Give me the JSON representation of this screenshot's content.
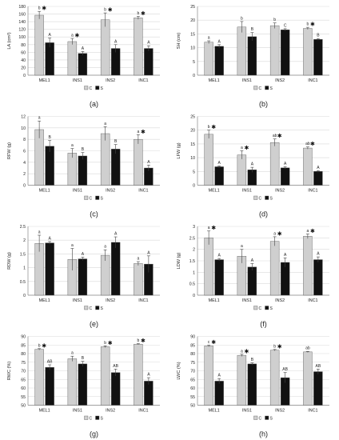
{
  "figure": {
    "legend_labels": [
      "C",
      "S"
    ],
    "colors": {
      "C": "#cfcfcf",
      "S": "#111111",
      "axis": "#888888",
      "grid": "#d9d9d9",
      "text": "#222222"
    }
  },
  "chart_data": [
    {
      "panel": "(a)",
      "type": "bar",
      "ylabel": "LA (cm²)",
      "ylim": [
        0,
        180
      ],
      "yticks": [
        0,
        20,
        40,
        60,
        80,
        100,
        120,
        140,
        160,
        180
      ],
      "categories": [
        "MEL1",
        "INS1",
        "INS2",
        "INC1"
      ],
      "series": [
        {
          "name": "C",
          "values": [
            157,
            88,
            145,
            150
          ],
          "err": [
            10,
            8,
            18,
            4
          ],
          "letters": [
            "b",
            "a",
            "b",
            "b"
          ],
          "stars": [
            true,
            true,
            true,
            true
          ]
        },
        {
          "name": "S",
          "values": [
            85,
            57,
            70,
            70
          ],
          "err": [
            12,
            5,
            10,
            7
          ],
          "letters": [
            "A",
            "A",
            "A",
            "A"
          ],
          "stars": [
            false,
            false,
            false,
            false
          ]
        }
      ]
    },
    {
      "panel": "(b)",
      "type": "bar",
      "ylabel": "SH (cm)",
      "ylim": [
        0,
        25
      ],
      "yticks": [
        0,
        5,
        10,
        15,
        20,
        25
      ],
      "categories": [
        "MEL1",
        "INS1",
        "INS2",
        "INC1"
      ],
      "series": [
        {
          "name": "C",
          "values": [
            12,
            17.5,
            18,
            17
          ],
          "err": [
            0.5,
            2,
            1,
            0.4
          ],
          "letters": [
            "a",
            "b",
            "b",
            "b"
          ],
          "stars": [
            false,
            false,
            false,
            true
          ]
        },
        {
          "name": "S",
          "values": [
            10.5,
            14,
            16.5,
            13
          ],
          "err": [
            0.6,
            1.5,
            0.4,
            0.3
          ],
          "letters": [
            "A",
            "B",
            "C",
            "B"
          ],
          "stars": [
            false,
            false,
            false,
            false
          ]
        }
      ]
    },
    {
      "panel": "(c)",
      "type": "bar",
      "ylabel": "RFW (g)",
      "ylim": [
        0,
        12
      ],
      "yticks": [
        0,
        2,
        4,
        6,
        8,
        10,
        12
      ],
      "categories": [
        "MEL1",
        "INS1",
        "INS2",
        "INC1"
      ],
      "series": [
        {
          "name": "C",
          "values": [
            9.7,
            5.6,
            9.0,
            8.0
          ],
          "err": [
            1.5,
            0.8,
            1.2,
            0.8
          ],
          "letters": [
            "a",
            "a",
            "a",
            "a"
          ],
          "stars": [
            false,
            false,
            false,
            true
          ]
        },
        {
          "name": "S",
          "values": [
            6.8,
            5.1,
            6.3,
            3.0
          ],
          "err": [
            1.0,
            0.6,
            0.8,
            0.5
          ],
          "letters": [
            "B",
            "B",
            "B",
            "A"
          ],
          "stars": [
            false,
            false,
            false,
            false
          ]
        }
      ]
    },
    {
      "panel": "(d)",
      "type": "bar",
      "ylabel": "LFW (g)",
      "ylim": [
        0,
        25
      ],
      "yticks": [
        0,
        5,
        10,
        15,
        20,
        25
      ],
      "categories": [
        "MEL1",
        "INS1",
        "INS2",
        "INC1"
      ],
      "series": [
        {
          "name": "C",
          "values": [
            18.5,
            11,
            15.5,
            13.5
          ],
          "err": [
            1.5,
            1.5,
            1.3,
            0.4
          ],
          "letters": [
            "b",
            "a",
            "ab",
            "ab"
          ],
          "stars": [
            true,
            true,
            true,
            true
          ]
        },
        {
          "name": "S",
          "values": [
            6.7,
            5.6,
            6.3,
            5.0
          ],
          "err": [
            0.3,
            0.9,
            0.4,
            0.3
          ],
          "letters": [
            "A",
            "A",
            "A",
            "A"
          ],
          "stars": [
            false,
            false,
            false,
            false
          ]
        }
      ]
    },
    {
      "panel": "(e)",
      "type": "bar",
      "ylabel": "RDW (g)",
      "ylim": [
        0,
        2.5
      ],
      "yticks": [
        0,
        0.5,
        1,
        1.5,
        2,
        2.5
      ],
      "categories": [
        "MEL1",
        "INS1",
        "INS2",
        "INC1"
      ],
      "series": [
        {
          "name": "C",
          "values": [
            1.88,
            1.3,
            1.45,
            1.15
          ],
          "err": [
            0.3,
            0.4,
            0.2,
            0.07
          ],
          "letters": [
            "a",
            "a",
            "a",
            "a"
          ],
          "stars": [
            false,
            false,
            false,
            false
          ]
        },
        {
          "name": "S",
          "values": [
            1.9,
            1.32,
            1.92,
            1.13
          ],
          "err": [
            0.05,
            0.06,
            0.2,
            0.3
          ],
          "letters": [
            "A",
            "A",
            "A",
            "A"
          ],
          "stars": [
            false,
            false,
            false,
            false
          ]
        }
      ]
    },
    {
      "panel": "(f)",
      "type": "bar",
      "ylabel": "LDW (g)",
      "ylim": [
        0,
        3
      ],
      "yticks": [
        0,
        0.5,
        1,
        1.5,
        2,
        2.5,
        3
      ],
      "categories": [
        "MEL1",
        "INS1",
        "INS2",
        "INC1"
      ],
      "series": [
        {
          "name": "C",
          "values": [
            2.5,
            1.7,
            2.35,
            2.57
          ],
          "err": [
            0.3,
            0.3,
            0.2,
            0.1
          ],
          "letters": [
            "a",
            "a",
            "a",
            "a"
          ],
          "stars": [
            true,
            false,
            true,
            true
          ]
        },
        {
          "name": "S",
          "values": [
            1.55,
            1.23,
            1.43,
            1.55
          ],
          "err": [
            0.05,
            0.15,
            0.2,
            0.12
          ],
          "letters": [
            "A",
            "A",
            "A",
            "A"
          ],
          "stars": [
            false,
            false,
            false,
            false
          ]
        }
      ]
    },
    {
      "panel": "(g)",
      "type": "bar",
      "ylabel": "RWC (%)",
      "ylim": [
        50,
        90
      ],
      "yticks": [
        50,
        55,
        60,
        65,
        70,
        75,
        80,
        85,
        90
      ],
      "categories": [
        "MEL1",
        "INS1",
        "INS2",
        "INC1"
      ],
      "series": [
        {
          "name": "C",
          "values": [
            82.5,
            77,
            84,
            85.5
          ],
          "err": [
            0.4,
            1.5,
            0.5,
            0.3
          ],
          "letters": [
            "b",
            "a",
            "b",
            "b"
          ],
          "stars": [
            true,
            false,
            true,
            true
          ]
        },
        {
          "name": "S",
          "values": [
            72,
            74,
            69,
            64
          ],
          "err": [
            1.5,
            1.5,
            2,
            2
          ],
          "letters": [
            "AB",
            "B",
            "AB",
            "A"
          ],
          "stars": [
            false,
            false,
            false,
            false
          ]
        }
      ]
    },
    {
      "panel": "(h)",
      "type": "bar",
      "ylabel": "LWC (%)",
      "ylim": [
        50,
        90
      ],
      "yticks": [
        50,
        55,
        60,
        65,
        70,
        75,
        80,
        85,
        90
      ],
      "categories": [
        "MEL1",
        "INS1",
        "INS2",
        "INC1"
      ],
      "series": [
        {
          "name": "C",
          "values": [
            84.5,
            79,
            82,
            81
          ],
          "err": [
            0.5,
            0.6,
            0.4,
            0.3
          ],
          "letters": [
            "c",
            "a",
            "b",
            "ab"
          ],
          "stars": [
            true,
            true,
            true,
            false
          ]
        },
        {
          "name": "S",
          "values": [
            64,
            74,
            66,
            69.5
          ],
          "err": [
            1.5,
            0.6,
            3,
            1.5
          ],
          "letters": [
            "A",
            "B",
            "AB",
            "AB"
          ],
          "stars": [
            false,
            false,
            false,
            false
          ]
        }
      ]
    }
  ]
}
